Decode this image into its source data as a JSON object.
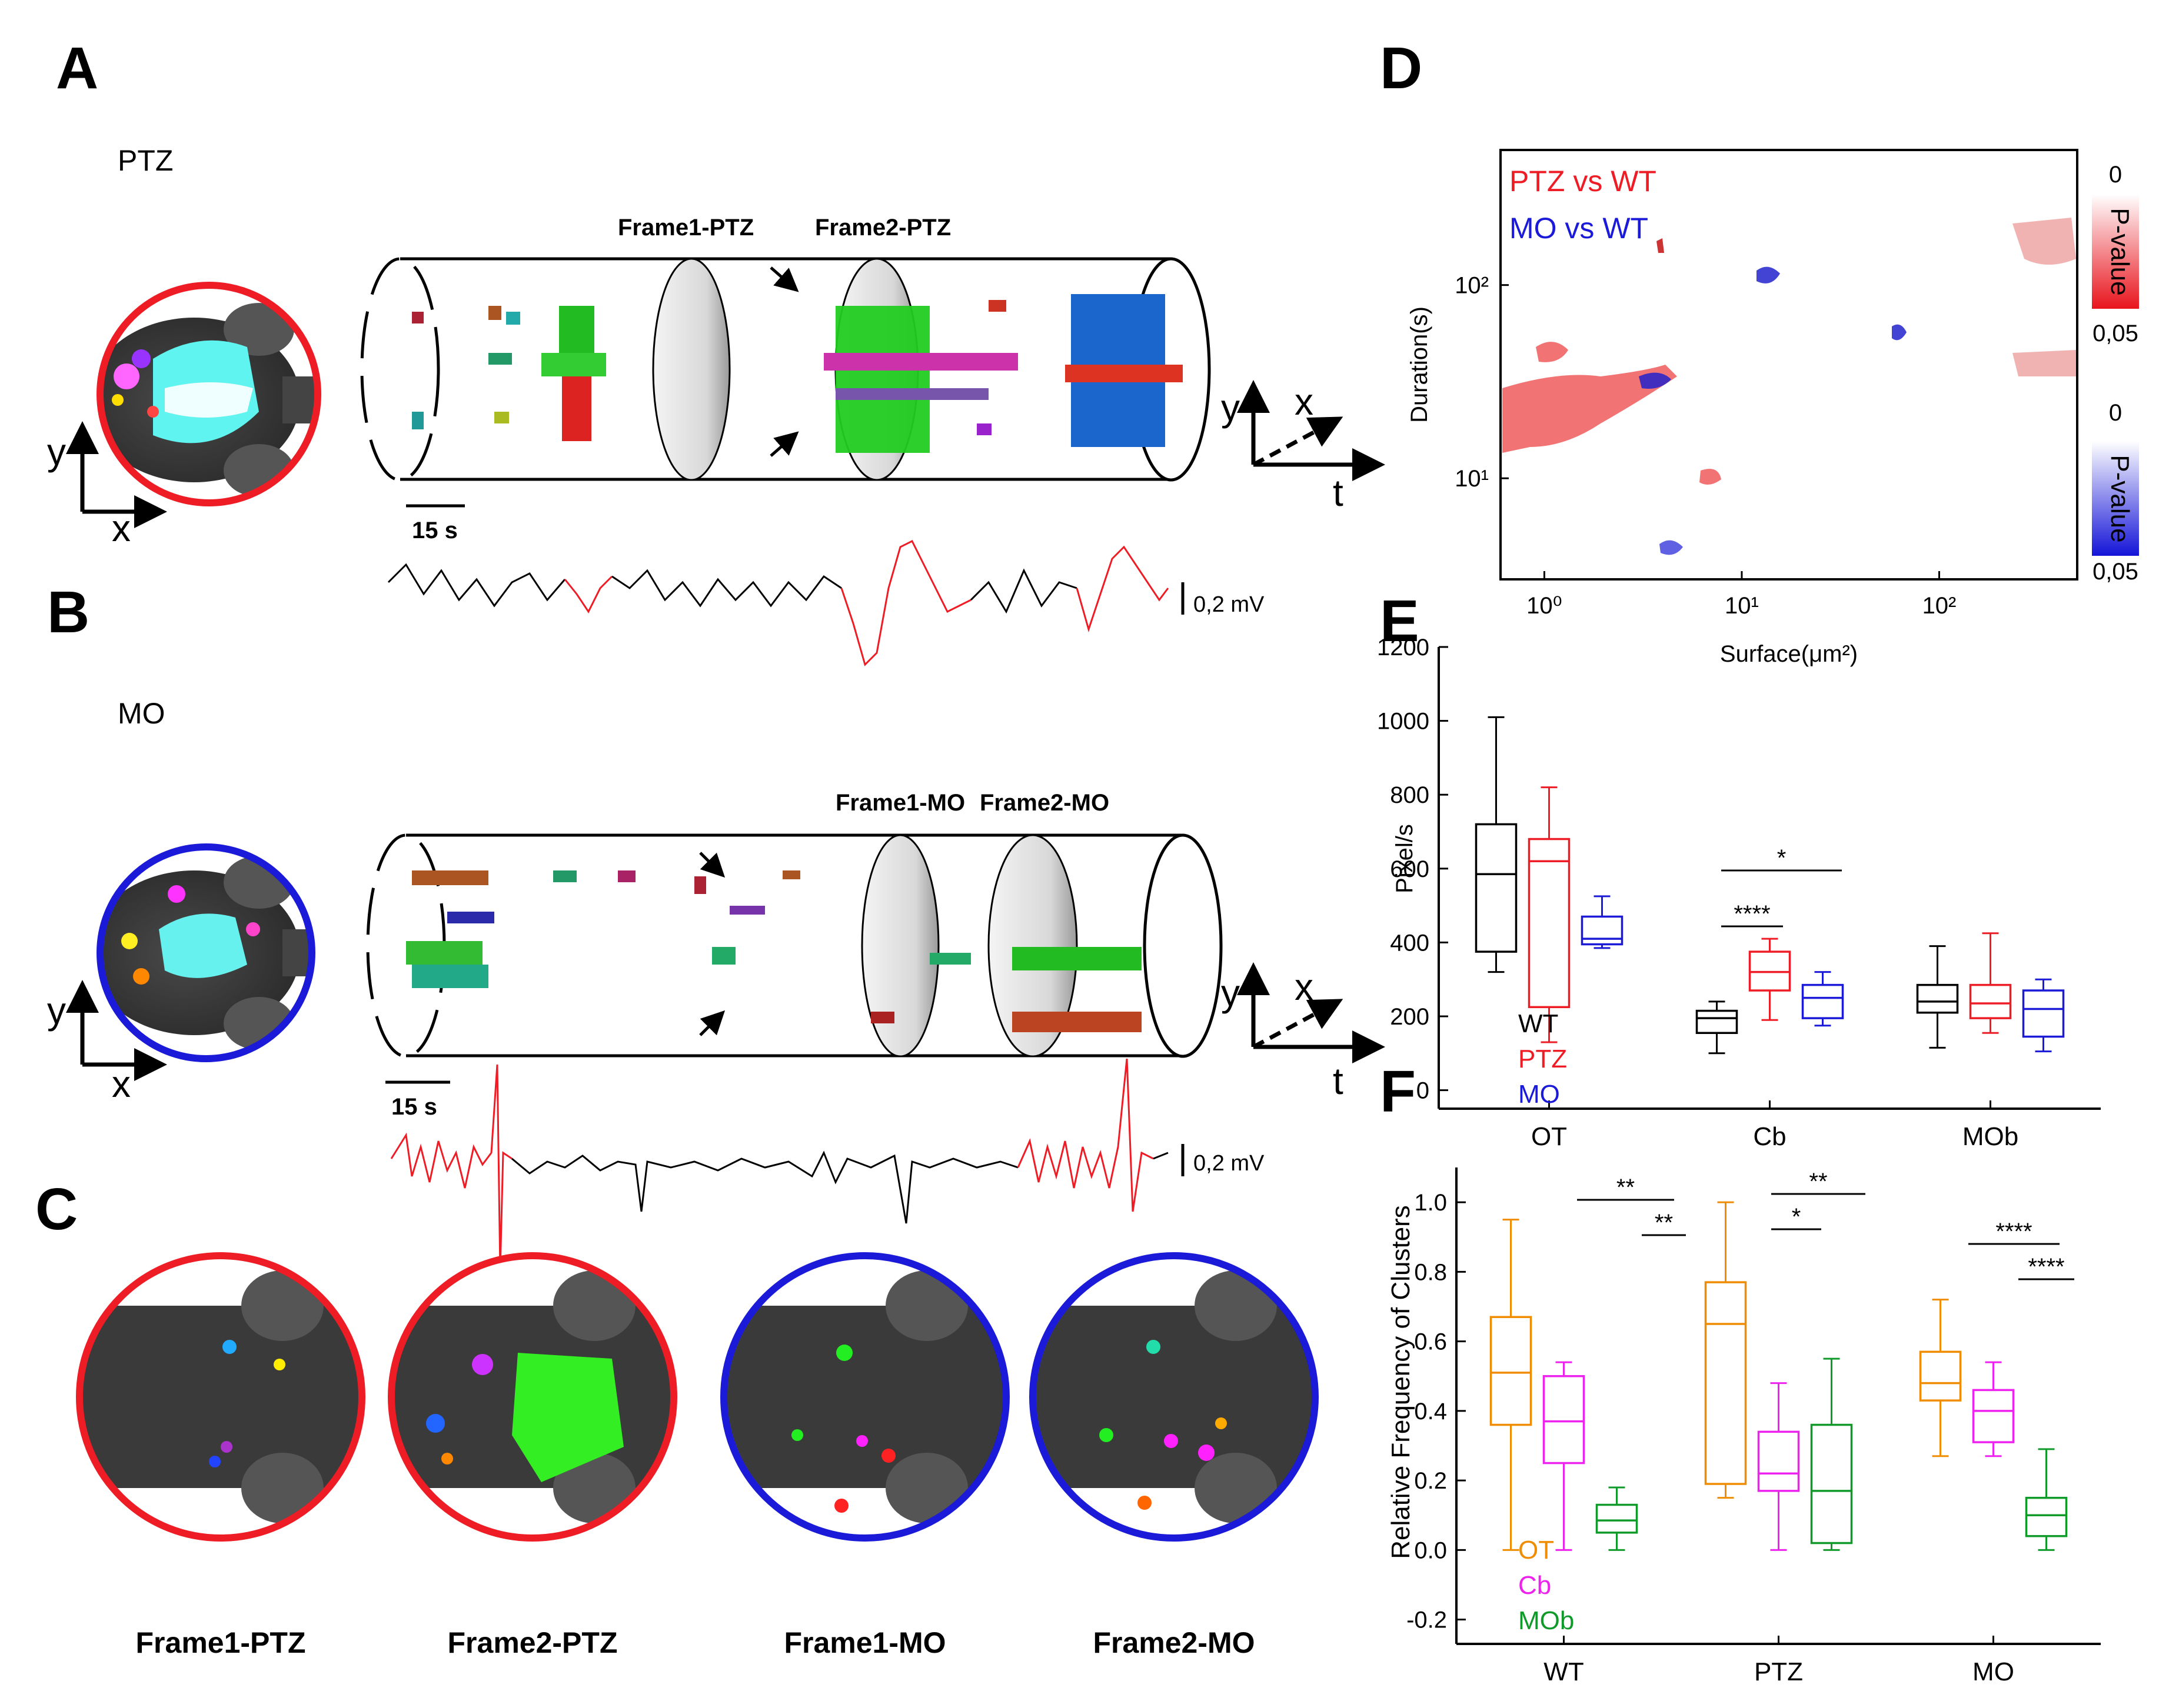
{
  "panels": {
    "A": {
      "letter": "A",
      "condition": "PTZ",
      "frame1": "Frame1-PTZ",
      "frame2": "Frame2-PTZ",
      "scale": "15 s",
      "axis_y": "y",
      "axis_x": "x",
      "axis_t": "t"
    },
    "B": {
      "letter": "B",
      "condition": "MO",
      "frame1": "Frame1-MO",
      "frame2": "Frame2-MO",
      "scale": "15 s",
      "mv": "0,2 mV",
      "mv2": "0,2 mV",
      "axis_y": "y",
      "axis_x": "x",
      "axis_t": "t"
    },
    "C": {
      "letter": "C",
      "labels": [
        "Frame1-PTZ",
        "Frame2-PTZ",
        "Frame1-MO",
        "Frame2-MO"
      ]
    },
    "D": {
      "letter": "D",
      "legend_ptz": "PTZ vs WT",
      "legend_mo": "MO vs WT",
      "cbar_top": "0",
      "cbar_bottom": "0,05",
      "cbar_label": "P-value",
      "cbar2_top": "0",
      "cbar2_bottom": "0,05",
      "cbar2_label": "P-value"
    },
    "E": {
      "letter": "E"
    },
    "F": {
      "letter": "F"
    }
  },
  "colors": {
    "ptz": "#ee1c25",
    "mo": "#1a1ad8",
    "wt": "#000000",
    "ot": "#f08c00",
    "cb": "#ee22ee",
    "mob": "#109a2a"
  },
  "chart_data": [
    {
      "type": "heatmap",
      "panel": "D",
      "xlabel": "Surface(μm²)",
      "ylabel": "Duration(s)",
      "x_scale": "log",
      "y_scale": "log",
      "xlim": [
        0.6,
        500
      ],
      "ylim": [
        3,
        500
      ],
      "x_ticks": [
        "10⁰",
        "10¹",
        "10²"
      ],
      "y_ticks": [
        "10¹",
        "10²"
      ],
      "series": [
        {
          "name": "PTZ vs WT"
        },
        {
          "name": "MO vs WT"
        }
      ],
      "colorbar": {
        "label": "P-value",
        "range": [
          0,
          0.05
        ]
      }
    },
    {
      "type": "box",
      "panel": "E",
      "ylabel": "Pixel/s",
      "ylim": [
        -50,
        1200
      ],
      "yticks": [
        0,
        200,
        400,
        600,
        800,
        1000,
        1200
      ],
      "categories": [
        "OT",
        "Cb",
        "MOb"
      ],
      "series_names": [
        "WT",
        "PTZ",
        "MO"
      ],
      "boxes": [
        {
          "group": "OT",
          "series": "WT",
          "min": 320,
          "q1": 375,
          "median": 585,
          "q3": 720,
          "max": 1010
        },
        {
          "group": "OT",
          "series": "PTZ",
          "min": 130,
          "q1": 225,
          "median": 620,
          "q3": 680,
          "max": 820
        },
        {
          "group": "OT",
          "series": "MO",
          "min": 385,
          "q1": 395,
          "median": 410,
          "q3": 470,
          "max": 525
        },
        {
          "group": "Cb",
          "series": "WT",
          "min": 100,
          "q1": 155,
          "median": 195,
          "q3": 215,
          "max": 240
        },
        {
          "group": "Cb",
          "series": "PTZ",
          "min": 190,
          "q1": 270,
          "median": 320,
          "q3": 375,
          "max": 410
        },
        {
          "group": "Cb",
          "series": "MO",
          "min": 175,
          "q1": 195,
          "median": 250,
          "q3": 285,
          "max": 320
        },
        {
          "group": "MOb",
          "series": "WT",
          "min": 115,
          "q1": 210,
          "median": 240,
          "q3": 285,
          "max": 390
        },
        {
          "group": "MOb",
          "series": "PTZ",
          "min": 155,
          "q1": 195,
          "median": 235,
          "q3": 285,
          "max": 425
        },
        {
          "group": "MOb",
          "series": "MO",
          "min": 105,
          "q1": 145,
          "median": 220,
          "q3": 270,
          "max": 300
        }
      ],
      "significance": [
        {
          "label": "*",
          "group": "Cb"
        },
        {
          "label": "****",
          "group": "Cb"
        }
      ]
    },
    {
      "type": "box",
      "panel": "F",
      "ylabel": "Relative Frequency of Clusters",
      "ylim": [
        -0.27,
        1.1
      ],
      "yticks": [
        "-0.2",
        "0.0",
        "0.2",
        "0.4",
        "0.6",
        "0.8",
        "1.0"
      ],
      "categories": [
        "WT",
        "PTZ",
        "MO"
      ],
      "series_names": [
        "OT",
        "Cb",
        "MOb"
      ],
      "boxes": [
        {
          "group": "WT",
          "series": "OT",
          "min": 0.0,
          "q1": 0.36,
          "median": 0.51,
          "q3": 0.67,
          "max": 0.95
        },
        {
          "group": "WT",
          "series": "Cb",
          "min": 0.0,
          "q1": 0.25,
          "median": 0.37,
          "q3": 0.5,
          "max": 0.54
        },
        {
          "group": "WT",
          "series": "MOb",
          "min": 0.0,
          "q1": 0.05,
          "median": 0.085,
          "q3": 0.13,
          "max": 0.18
        },
        {
          "group": "PTZ",
          "series": "OT",
          "min": 0.15,
          "q1": 0.19,
          "median": 0.65,
          "q3": 0.77,
          "max": 1.0
        },
        {
          "group": "PTZ",
          "series": "Cb",
          "min": 0.0,
          "q1": 0.17,
          "median": 0.22,
          "q3": 0.34,
          "max": 0.48
        },
        {
          "group": "PTZ",
          "series": "MOb",
          "min": 0.0,
          "q1": 0.02,
          "median": 0.17,
          "q3": 0.36,
          "max": 0.55
        },
        {
          "group": "MO",
          "series": "OT",
          "min": 0.27,
          "q1": 0.43,
          "median": 0.48,
          "q3": 0.57,
          "max": 0.72
        },
        {
          "group": "MO",
          "series": "Cb",
          "min": 0.27,
          "q1": 0.31,
          "median": 0.4,
          "q3": 0.46,
          "max": 0.54
        },
        {
          "group": "MO",
          "series": "MOb",
          "min": 0.0,
          "q1": 0.04,
          "median": 0.1,
          "q3": 0.15,
          "max": 0.29
        }
      ],
      "significance": [
        {
          "label": "**",
          "group": "WT"
        },
        {
          "label": "**",
          "group": "WT"
        },
        {
          "label": "**",
          "group": "PTZ"
        },
        {
          "label": "*",
          "group": "PTZ"
        },
        {
          "label": "****",
          "group": "MO"
        },
        {
          "label": "****",
          "group": "MO"
        }
      ]
    }
  ]
}
